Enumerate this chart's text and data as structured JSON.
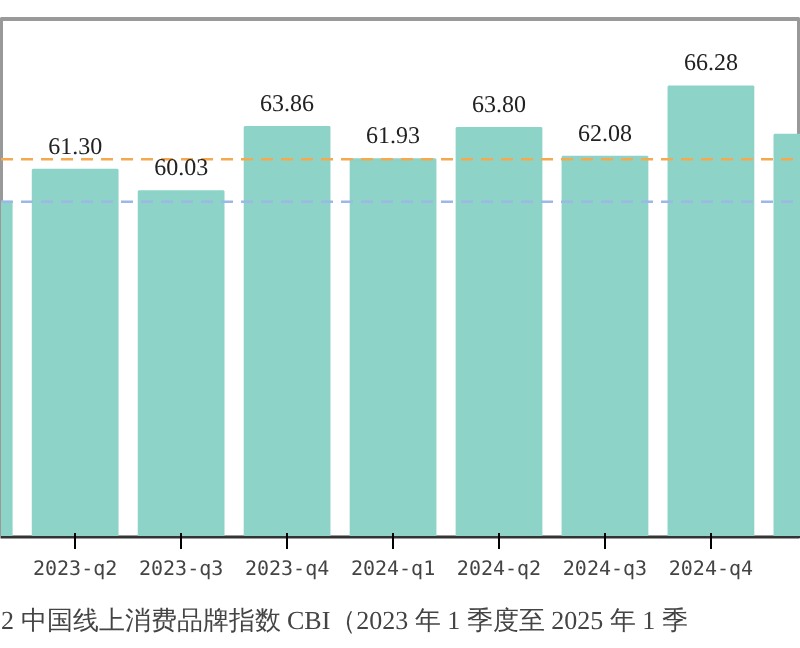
{
  "chart_data": {
    "type": "bar",
    "title": "2 中国线上消费品牌指数 CBI（2023 年 1 季度至 2025 年 1 季",
    "categories": [
      null,
      "2023-q2",
      "2023-q3",
      "2023-q4",
      "2024-q1",
      "2024-q2",
      "2024-q3",
      "2024-q4",
      null
    ],
    "values": [
      59.4,
      61.3,
      60.03,
      63.86,
      61.93,
      63.8,
      62.08,
      66.28,
      63.4
    ],
    "value_labels": [
      null,
      "61.30",
      "60.03",
      "63.86",
      "61.93",
      "63.80",
      "62.08",
      "66.28",
      null
    ],
    "color": "#8dd3c7",
    "ylim": [
      39.4,
      70.3
    ],
    "ref_lines": [
      {
        "axis": "y",
        "value": 59.4,
        "color": "#9bb8e6",
        "line_style": "dashed"
      },
      {
        "axis": "y",
        "value": 61.93,
        "color": "#f5a94e",
        "line_style": "dashed"
      }
    ]
  }
}
